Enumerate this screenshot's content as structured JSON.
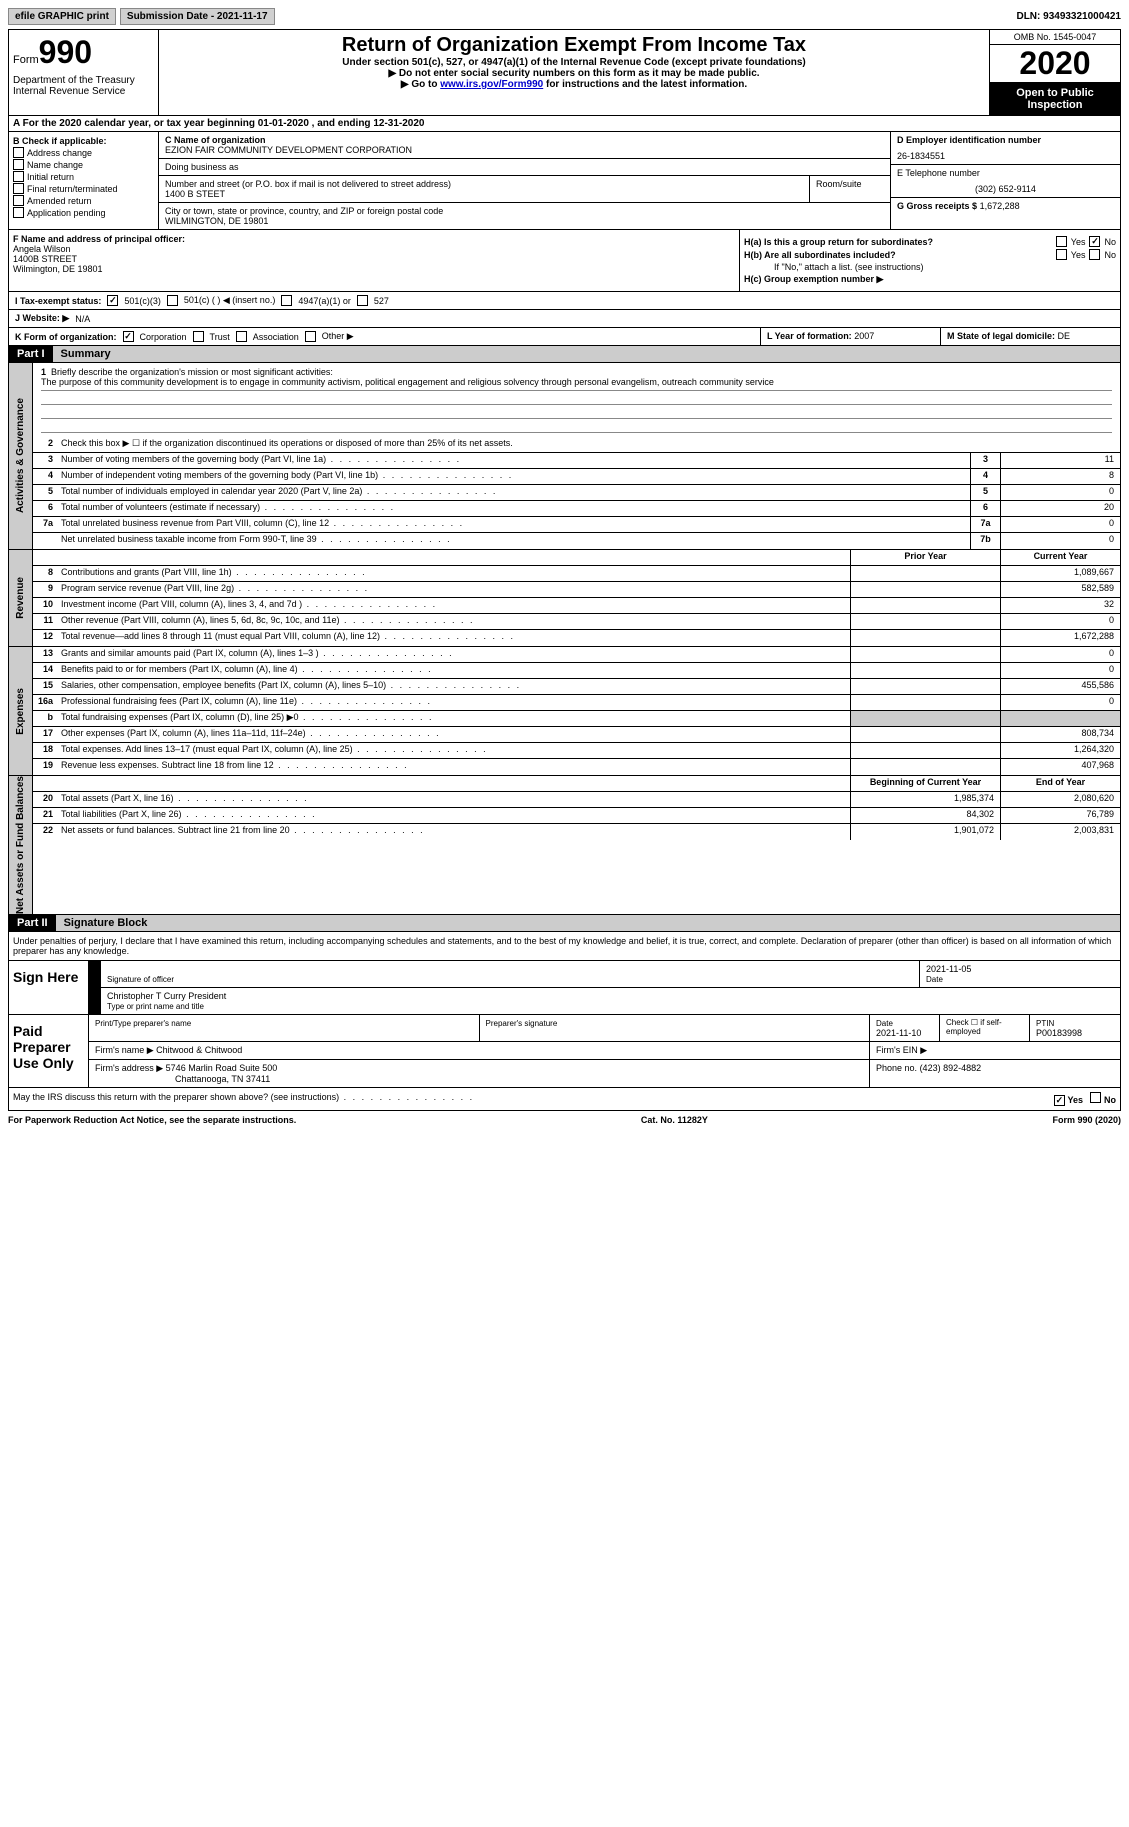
{
  "topbar": {
    "efile": "efile GRAPHIC print",
    "submission_label": "Submission Date - 2021-11-17",
    "dln": "DLN: 93493321000421"
  },
  "header": {
    "form_word": "Form",
    "form_num": "990",
    "dept": "Department of the Treasury\nInternal Revenue Service",
    "title": "Return of Organization Exempt From Income Tax",
    "subtitle": "Under section 501(c), 527, or 4947(a)(1) of the Internal Revenue Code (except private foundations)",
    "note1": "▶ Do not enter social security numbers on this form as it may be made public.",
    "note2_pre": "▶ Go to ",
    "note2_link": "www.irs.gov/Form990",
    "note2_post": " for instructions and the latest information.",
    "omb": "OMB No. 1545-0047",
    "year": "2020",
    "open": "Open to Public Inspection"
  },
  "section_a": "A For the 2020 calendar year, or tax year beginning 01-01-2020   , and ending 12-31-2020",
  "col_b": {
    "label": "B Check if applicable:",
    "items": [
      "Address change",
      "Name change",
      "Initial return",
      "Final return/terminated",
      "Amended return",
      "Application pending"
    ]
  },
  "col_c": {
    "name_label": "C Name of organization",
    "name": "EZION FAIR COMMUNITY DEVELOPMENT CORPORATION",
    "dba_label": "Doing business as",
    "addr_label": "Number and street (or P.O. box if mail is not delivered to street address)",
    "room_label": "Room/suite",
    "addr": "1400 B STEET",
    "city_label": "City or town, state or province, country, and ZIP or foreign postal code",
    "city": "WILMINGTON, DE  19801"
  },
  "col_d": {
    "ein_label": "D Employer identification number",
    "ein": "26-1834551",
    "tel_label": "E Telephone number",
    "tel": "(302) 652-9114",
    "gross_label": "G Gross receipts $",
    "gross": "1,672,288"
  },
  "row_f": {
    "label": "F Name and address of principal officer:",
    "name": "Angela Wilson",
    "addr1": "1400B STREET",
    "addr2": "Wilmington, DE  19801"
  },
  "row_h": {
    "ha": "H(a)  Is this a group return for subordinates?",
    "hb": "H(b)  Are all subordinates included?",
    "hb_note": "If \"No,\" attach a list. (see instructions)",
    "hc": "H(c)  Group exemption number ▶",
    "yes": "Yes",
    "no": "No"
  },
  "row_i": {
    "label": "I Tax-exempt status:",
    "opts": [
      "501(c)(3)",
      "501(c) (   ) ◀ (insert no.)",
      "4947(a)(1) or",
      "527"
    ]
  },
  "row_j": {
    "label": "J Website: ▶",
    "val": "N/A"
  },
  "row_k": {
    "label": "K Form of organization:",
    "opts": [
      "Corporation",
      "Trust",
      "Association",
      "Other ▶"
    ],
    "ly_label": "L Year of formation:",
    "ly": "2007",
    "ms_label": "M State of legal domicile:",
    "ms": "DE"
  },
  "part1": {
    "hdr": "Part I",
    "title": "Summary",
    "q1": "Briefly describe the organization's mission or most significant activities:",
    "a1": "The purpose of this community development is to engage in community activism, political engagement and religious solvency through personal evangelism, outreach community service",
    "q2": "Check this box ▶ ☐  if the organization discontinued its operations or disposed of more than 25% of its net assets.",
    "rows_gov": [
      {
        "n": "3",
        "d": "Number of voting members of the governing body (Part VI, line 1a)",
        "box": "3",
        "v": "11"
      },
      {
        "n": "4",
        "d": "Number of independent voting members of the governing body (Part VI, line 1b)",
        "box": "4",
        "v": "8"
      },
      {
        "n": "5",
        "d": "Total number of individuals employed in calendar year 2020 (Part V, line 2a)",
        "box": "5",
        "v": "0"
      },
      {
        "n": "6",
        "d": "Total number of volunteers (estimate if necessary)",
        "box": "6",
        "v": "20"
      },
      {
        "n": "7a",
        "d": "Total unrelated business revenue from Part VIII, column (C), line 12",
        "box": "7a",
        "v": "0"
      },
      {
        "n": "",
        "d": "Net unrelated business taxable income from Form 990-T, line 39",
        "box": "7b",
        "v": "0"
      }
    ],
    "col_prior": "Prior Year",
    "col_current": "Current Year",
    "rows_rev": [
      {
        "n": "8",
        "d": "Contributions and grants (Part VIII, line 1h)",
        "p": "",
        "c": "1,089,667"
      },
      {
        "n": "9",
        "d": "Program service revenue (Part VIII, line 2g)",
        "p": "",
        "c": "582,589"
      },
      {
        "n": "10",
        "d": "Investment income (Part VIII, column (A), lines 3, 4, and 7d )",
        "p": "",
        "c": "32"
      },
      {
        "n": "11",
        "d": "Other revenue (Part VIII, column (A), lines 5, 6d, 8c, 9c, 10c, and 11e)",
        "p": "",
        "c": "0"
      },
      {
        "n": "12",
        "d": "Total revenue—add lines 8 through 11 (must equal Part VIII, column (A), line 12)",
        "p": "",
        "c": "1,672,288"
      }
    ],
    "rows_exp": [
      {
        "n": "13",
        "d": "Grants and similar amounts paid (Part IX, column (A), lines 1–3 )",
        "p": "",
        "c": "0"
      },
      {
        "n": "14",
        "d": "Benefits paid to or for members (Part IX, column (A), line 4)",
        "p": "",
        "c": "0"
      },
      {
        "n": "15",
        "d": "Salaries, other compensation, employee benefits (Part IX, column (A), lines 5–10)",
        "p": "",
        "c": "455,586"
      },
      {
        "n": "16a",
        "d": "Professional fundraising fees (Part IX, column (A), line 11e)",
        "p": "",
        "c": "0"
      },
      {
        "n": "b",
        "d": "Total fundraising expenses (Part IX, column (D), line 25) ▶0",
        "p": "shaded",
        "c": "shaded"
      },
      {
        "n": "17",
        "d": "Other expenses (Part IX, column (A), lines 11a–11d, 11f–24e)",
        "p": "",
        "c": "808,734"
      },
      {
        "n": "18",
        "d": "Total expenses. Add lines 13–17 (must equal Part IX, column (A), line 25)",
        "p": "",
        "c": "1,264,320"
      },
      {
        "n": "19",
        "d": "Revenue less expenses. Subtract line 18 from line 12",
        "p": "",
        "c": "407,968"
      }
    ],
    "col_begin": "Beginning of Current Year",
    "col_end": "End of Year",
    "rows_net": [
      {
        "n": "20",
        "d": "Total assets (Part X, line 16)",
        "p": "1,985,374",
        "c": "2,080,620"
      },
      {
        "n": "21",
        "d": "Total liabilities (Part X, line 26)",
        "p": "84,302",
        "c": "76,789"
      },
      {
        "n": "22",
        "d": "Net assets or fund balances. Subtract line 21 from line 20",
        "p": "1,901,072",
        "c": "2,003,831"
      }
    ],
    "tab_gov": "Activities & Governance",
    "tab_rev": "Revenue",
    "tab_exp": "Expenses",
    "tab_net": "Net Assets or Fund Balances"
  },
  "part2": {
    "hdr": "Part II",
    "title": "Signature Block",
    "decl": "Under penalties of perjury, I declare that I have examined this return, including accompanying schedules and statements, and to the best of my knowledge and belief, it is true, correct, and complete. Declaration of preparer (other than officer) is based on all information of which preparer has any knowledge.",
    "sign_here": "Sign Here",
    "sig_officer": "Signature of officer",
    "sig_date": "2021-11-05",
    "date_label": "Date",
    "officer_name": "Christopher T Curry President",
    "officer_label": "Type or print name and title",
    "paid": "Paid Preparer Use Only",
    "prep_name_label": "Print/Type preparer's name",
    "prep_sig_label": "Preparer's signature",
    "prep_date_label": "Date",
    "prep_date": "2021-11-10",
    "prep_check_label": "Check ☐ if self-employed",
    "ptin_label": "PTIN",
    "ptin": "P00183998",
    "firm_name_label": "Firm's name  ▶",
    "firm_name": "Chitwood & Chitwood",
    "firm_ein_label": "Firm's EIN ▶",
    "firm_addr_label": "Firm's address ▶",
    "firm_addr": "5746 Marlin Road Suite 500",
    "firm_city": "Chattanooga, TN  37411",
    "firm_phone_label": "Phone no.",
    "firm_phone": "(423) 892-4882",
    "discuss": "May the IRS discuss this return with the preparer shown above? (see instructions)",
    "yes": "Yes",
    "no": "No"
  },
  "footer": {
    "pra": "For Paperwork Reduction Act Notice, see the separate instructions.",
    "cat": "Cat. No. 11282Y",
    "form": "Form 990 (2020)"
  }
}
